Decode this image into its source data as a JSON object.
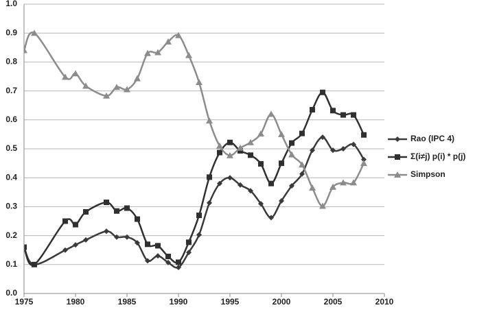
{
  "chart_data": {
    "type": "line",
    "x": [
      1975,
      1976,
      1979,
      1980,
      1981,
      1983,
      1984,
      1985,
      1986,
      1987,
      1988,
      1989,
      1990,
      1991,
      1992,
      1993,
      1994,
      1995,
      1996,
      1997,
      1998,
      1999,
      2000,
      2001,
      2002,
      2003,
      2004,
      2005,
      2006,
      2007,
      2008
    ],
    "series": [
      {
        "name": "Rao (IPC 4)",
        "color": "#3a3a3a",
        "marker": "diamond",
        "values": [
          0.16,
          0.1,
          0.15,
          0.168,
          0.185,
          0.215,
          0.195,
          0.195,
          0.175,
          0.113,
          0.13,
          0.107,
          0.09,
          0.142,
          0.203,
          0.313,
          0.38,
          0.4,
          0.375,
          0.355,
          0.31,
          0.262,
          0.32,
          0.372,
          0.413,
          0.495,
          0.54,
          0.495,
          0.5,
          0.515,
          0.463
        ]
      },
      {
        "name": "Σ(i≠j) p(i) * p(j)",
        "color": "#303030",
        "marker": "square",
        "values": [
          0.16,
          0.1,
          0.25,
          0.238,
          0.282,
          0.315,
          0.285,
          0.295,
          0.257,
          0.17,
          0.165,
          0.128,
          0.108,
          0.177,
          0.27,
          0.402,
          0.487,
          0.522,
          0.493,
          0.478,
          0.448,
          0.38,
          0.45,
          0.52,
          0.553,
          0.635,
          0.695,
          0.632,
          0.617,
          0.617,
          0.548
        ]
      },
      {
        "name": "Simpson",
        "color": "#8c8c8c",
        "marker": "triangle",
        "values": [
          0.84,
          0.9,
          0.748,
          0.76,
          0.717,
          0.683,
          0.713,
          0.705,
          0.743,
          0.83,
          0.833,
          0.87,
          0.892,
          0.823,
          0.73,
          0.597,
          0.51,
          0.477,
          0.503,
          0.522,
          0.552,
          0.62,
          0.55,
          0.48,
          0.445,
          0.365,
          0.302,
          0.368,
          0.383,
          0.383,
          0.45
        ]
      }
    ],
    "xlim": [
      1975,
      2010
    ],
    "xticks": [
      1975,
      1980,
      1985,
      1990,
      1995,
      2000,
      2005,
      2010
    ],
    "ylim": [
      0,
      1
    ],
    "yticks": [
      {
        "value": 0,
        "label": "0.0"
      },
      0.1,
      0.2,
      0.3,
      0.4,
      0.5,
      0.6,
      0.7,
      0.8,
      0.9,
      {
        "value": 1,
        "label": "1.0"
      }
    ],
    "grid": true,
    "smooth": true,
    "legend": "right"
  }
}
